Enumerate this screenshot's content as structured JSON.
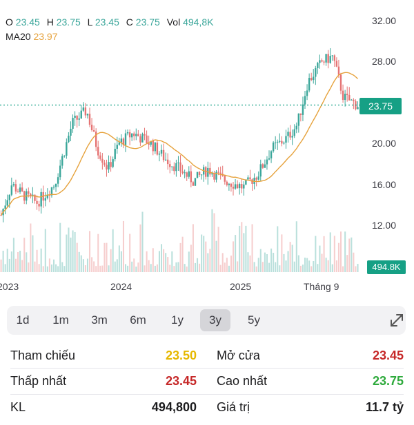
{
  "ohlc": {
    "open_label": "O",
    "open": "23.45",
    "high_label": "H",
    "high": "23.75",
    "low_label": "L",
    "low": "23.45",
    "close_label": "C",
    "close": "23.75",
    "vol_label": "Vol",
    "vol": "494,8K"
  },
  "ma": {
    "label": "MA20",
    "value": "23.97"
  },
  "price_badge": "23.75",
  "volume_badge": "494.8K",
  "colors": {
    "up": "#3aa69a",
    "down": "#e57373",
    "ma": "#e6a23c",
    "badge": "#16a085",
    "ref": "#e6b800",
    "neg": "#c62828",
    "pos": "#2eaa3c"
  },
  "chart_data": {
    "type": "candlestick",
    "y_ticks": [
      "32.00",
      "28.00",
      "24.00",
      "20.00",
      "16.00",
      "12.00"
    ],
    "x_ticks": [
      "2023",
      "2024",
      "2025",
      "Tháng 9"
    ],
    "last_price": 23.75,
    "close_path": [
      [
        0,
        13.0
      ],
      [
        0.03,
        16.0
      ],
      [
        0.06,
        15.0
      ],
      [
        0.1,
        14.2
      ],
      [
        0.15,
        16.0
      ],
      [
        0.2,
        22.0
      ],
      [
        0.24,
        23.2
      ],
      [
        0.27,
        19.5
      ],
      [
        0.3,
        17.5
      ],
      [
        0.33,
        20.0
      ],
      [
        0.37,
        21.0
      ],
      [
        0.42,
        20.0
      ],
      [
        0.46,
        18.5
      ],
      [
        0.5,
        17.5
      ],
      [
        0.54,
        16.3
      ],
      [
        0.58,
        17.5
      ],
      [
        0.62,
        16.5
      ],
      [
        0.68,
        15.7
      ],
      [
        0.72,
        17.0
      ],
      [
        0.76,
        19.5
      ],
      [
        0.8,
        20.5
      ],
      [
        0.83,
        21.8
      ],
      [
        0.86,
        26.0
      ],
      [
        0.9,
        28.0
      ],
      [
        0.93,
        28.5
      ],
      [
        0.96,
        24.5
      ],
      [
        1.0,
        23.75
      ]
    ]
  },
  "ranges": [
    "1d",
    "1m",
    "3m",
    "6m",
    "1y",
    "3y",
    "5y"
  ],
  "active_range": "3y",
  "stats": {
    "ref_label": "Tham chiếu",
    "ref": "23.50",
    "open_label": "Mở cửa",
    "open": "23.45",
    "low_label": "Thấp nhất",
    "low": "23.45",
    "high_label": "Cao nhất",
    "high": "23.75",
    "vol_label": "KL",
    "vol": "494,800",
    "value_label": "Giá trị",
    "value": "11.7 tỷ"
  }
}
